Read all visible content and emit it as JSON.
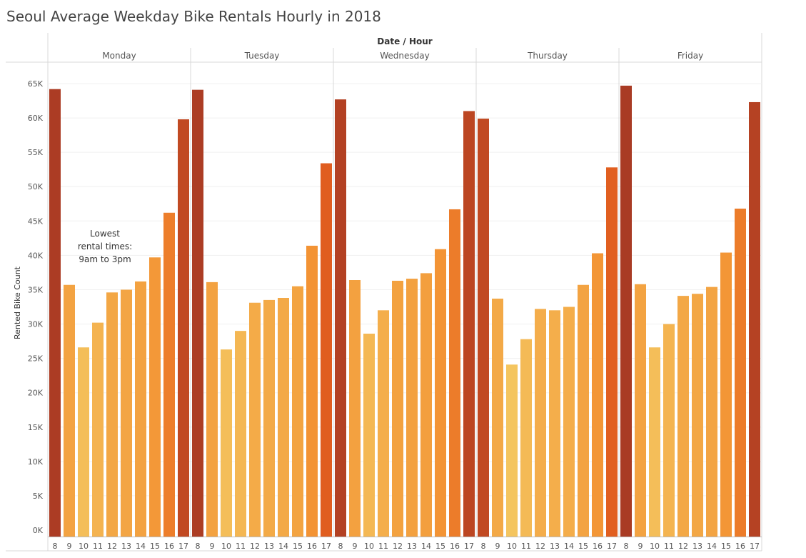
{
  "title": "Seoul Average Weekday Bike Rentals Hourly in 2018",
  "chart_data": {
    "type": "bar",
    "column_header": "Date / Hour",
    "ylabel": "Rented Bike Count",
    "ylim": [
      0,
      68000
    ],
    "yticks": [
      0,
      5000,
      10000,
      15000,
      20000,
      25000,
      30000,
      35000,
      40000,
      45000,
      50000,
      55000,
      60000,
      65000
    ],
    "ytick_labels": [
      "0K",
      "5K",
      "10K",
      "15K",
      "20K",
      "25K",
      "30K",
      "35K",
      "40K",
      "45K",
      "50K",
      "55K",
      "60K",
      "65K"
    ],
    "hours": [
      "8",
      "9",
      "10",
      "11",
      "12",
      "13",
      "14",
      "15",
      "16",
      "17"
    ],
    "grid": true,
    "color_scale": {
      "low": "#f4c55f",
      "mid": "#f39031",
      "high": "#e05c1f",
      "max": "#a83a24",
      "min_value": 24000,
      "max_value": 65000
    },
    "panels": [
      {
        "day": "Monday",
        "values": [
          64200,
          35700,
          26600,
          30200,
          34600,
          35000,
          36200,
          39700,
          46200,
          59800
        ]
      },
      {
        "day": "Tuesday",
        "values": [
          64100,
          36100,
          26300,
          29000,
          33100,
          33500,
          33800,
          35500,
          41400,
          53400
        ]
      },
      {
        "day": "Wednesday",
        "values": [
          62700,
          36400,
          28600,
          32000,
          36300,
          36600,
          37400,
          40900,
          46700,
          61000
        ]
      },
      {
        "day": "Thursday",
        "values": [
          59900,
          33700,
          24100,
          27800,
          32200,
          32000,
          32500,
          35700,
          40300,
          52800
        ]
      },
      {
        "day": "Friday",
        "values": [
          64700,
          35800,
          26600,
          30000,
          34100,
          34400,
          35400,
          40400,
          46800,
          62300
        ]
      }
    ],
    "annotations": [
      {
        "panel": "Monday",
        "lines": [
          "Lowest",
          "rental times:",
          "9am to 3pm"
        ]
      }
    ]
  }
}
